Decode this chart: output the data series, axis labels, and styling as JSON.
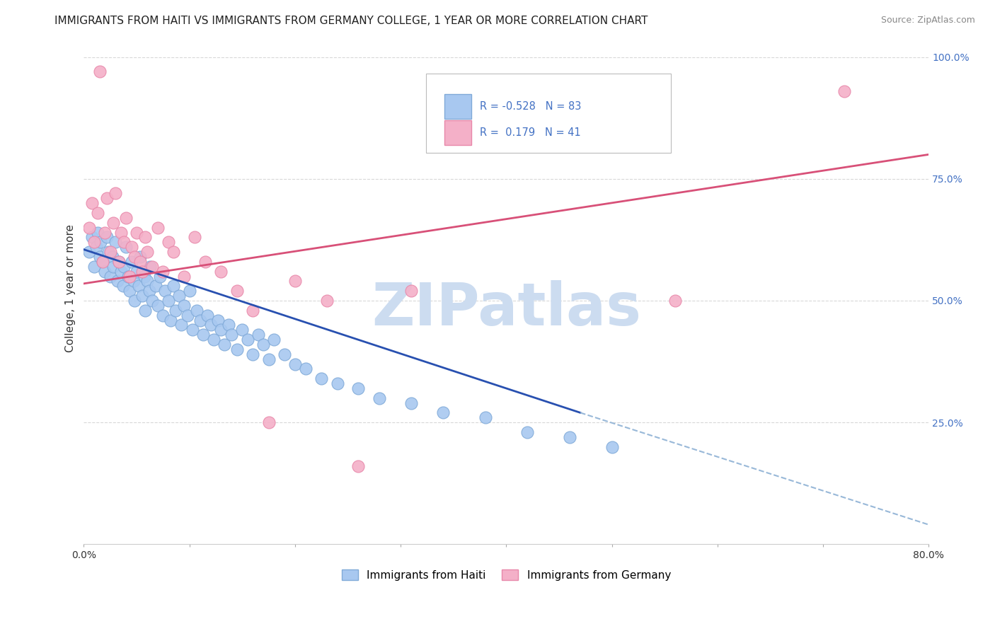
{
  "title": "IMMIGRANTS FROM HAITI VS IMMIGRANTS FROM GERMANY COLLEGE, 1 YEAR OR MORE CORRELATION CHART",
  "source": "Source: ZipAtlas.com",
  "ylabel": "College, 1 year or more",
  "x_min": 0.0,
  "x_max": 0.8,
  "y_min": 0.0,
  "y_max": 1.05,
  "y_ticks_right": [
    0.25,
    0.5,
    0.75,
    1.0
  ],
  "background_color": "#ffffff",
  "grid_color": "#d8d8d8",
  "legend_label_haiti": "Immigrants from Haiti",
  "legend_label_germany": "Immigrants from Germany",
  "haiti_scatter_color": "#a8c8f0",
  "haiti_scatter_edge": "#80aad8",
  "germany_scatter_color": "#f4b0c8",
  "germany_scatter_edge": "#e888aa",
  "haiti_line_color": "#2850b0",
  "haiti_line_dash_color": "#98b8d8",
  "germany_line_color": "#d85078",
  "haiti_x": [
    0.005,
    0.008,
    0.01,
    0.012,
    0.013,
    0.015,
    0.016,
    0.018,
    0.02,
    0.022,
    0.023,
    0.025,
    0.027,
    0.028,
    0.03,
    0.032,
    0.033,
    0.035,
    0.037,
    0.038,
    0.04,
    0.042,
    0.043,
    0.045,
    0.047,
    0.048,
    0.05,
    0.052,
    0.053,
    0.055,
    0.057,
    0.058,
    0.06,
    0.062,
    0.063,
    0.065,
    0.068,
    0.07,
    0.072,
    0.075,
    0.077,
    0.08,
    0.082,
    0.085,
    0.087,
    0.09,
    0.092,
    0.095,
    0.098,
    0.1,
    0.103,
    0.107,
    0.11,
    0.113,
    0.117,
    0.12,
    0.123,
    0.127,
    0.13,
    0.133,
    0.137,
    0.14,
    0.145,
    0.15,
    0.155,
    0.16,
    0.165,
    0.17,
    0.175,
    0.18,
    0.19,
    0.2,
    0.21,
    0.225,
    0.24,
    0.26,
    0.28,
    0.31,
    0.34,
    0.38,
    0.42,
    0.46,
    0.5
  ],
  "haiti_y": [
    0.6,
    0.63,
    0.57,
    0.61,
    0.64,
    0.59,
    0.62,
    0.58,
    0.56,
    0.63,
    0.6,
    0.55,
    0.59,
    0.57,
    0.62,
    0.54,
    0.58,
    0.56,
    0.53,
    0.57,
    0.61,
    0.55,
    0.52,
    0.58,
    0.54,
    0.5,
    0.56,
    0.53,
    0.59,
    0.51,
    0.55,
    0.48,
    0.54,
    0.52,
    0.57,
    0.5,
    0.53,
    0.49,
    0.55,
    0.47,
    0.52,
    0.5,
    0.46,
    0.53,
    0.48,
    0.51,
    0.45,
    0.49,
    0.47,
    0.52,
    0.44,
    0.48,
    0.46,
    0.43,
    0.47,
    0.45,
    0.42,
    0.46,
    0.44,
    0.41,
    0.45,
    0.43,
    0.4,
    0.44,
    0.42,
    0.39,
    0.43,
    0.41,
    0.38,
    0.42,
    0.39,
    0.37,
    0.36,
    0.34,
    0.33,
    0.32,
    0.3,
    0.29,
    0.27,
    0.26,
    0.23,
    0.22,
    0.2
  ],
  "germany_x": [
    0.005,
    0.008,
    0.01,
    0.013,
    0.015,
    0.018,
    0.02,
    0.022,
    0.025,
    0.028,
    0.03,
    0.033,
    0.035,
    0.038,
    0.04,
    0.043,
    0.045,
    0.048,
    0.05,
    0.053,
    0.055,
    0.058,
    0.06,
    0.065,
    0.07,
    0.075,
    0.08,
    0.085,
    0.095,
    0.105,
    0.115,
    0.13,
    0.145,
    0.16,
    0.175,
    0.2,
    0.23,
    0.26,
    0.31,
    0.56,
    0.72
  ],
  "germany_y": [
    0.65,
    0.7,
    0.62,
    0.68,
    0.97,
    0.58,
    0.64,
    0.71,
    0.6,
    0.66,
    0.72,
    0.58,
    0.64,
    0.62,
    0.67,
    0.55,
    0.61,
    0.59,
    0.64,
    0.58,
    0.56,
    0.63,
    0.6,
    0.57,
    0.65,
    0.56,
    0.62,
    0.6,
    0.55,
    0.63,
    0.58,
    0.56,
    0.52,
    0.48,
    0.25,
    0.54,
    0.5,
    0.16,
    0.52,
    0.5,
    0.93
  ],
  "haiti_trend_x0": 0.0,
  "haiti_trend_y0": 0.605,
  "haiti_trend_x1": 0.47,
  "haiti_trend_y1": 0.27,
  "haiti_trend_xdash": 0.47,
  "haiti_trend_ydash": 0.27,
  "haiti_trend_xend": 0.8,
  "haiti_trend_yend": 0.04,
  "germany_trend_x0": 0.0,
  "germany_trend_y0": 0.535,
  "germany_trend_x1": 0.8,
  "germany_trend_y1": 0.8,
  "watermark": "ZIPatlas",
  "watermark_color": "#ccdcf0",
  "title_fontsize": 11,
  "axis_label_fontsize": 11,
  "tick_fontsize": 10,
  "right_tick_color": "#4472c4"
}
